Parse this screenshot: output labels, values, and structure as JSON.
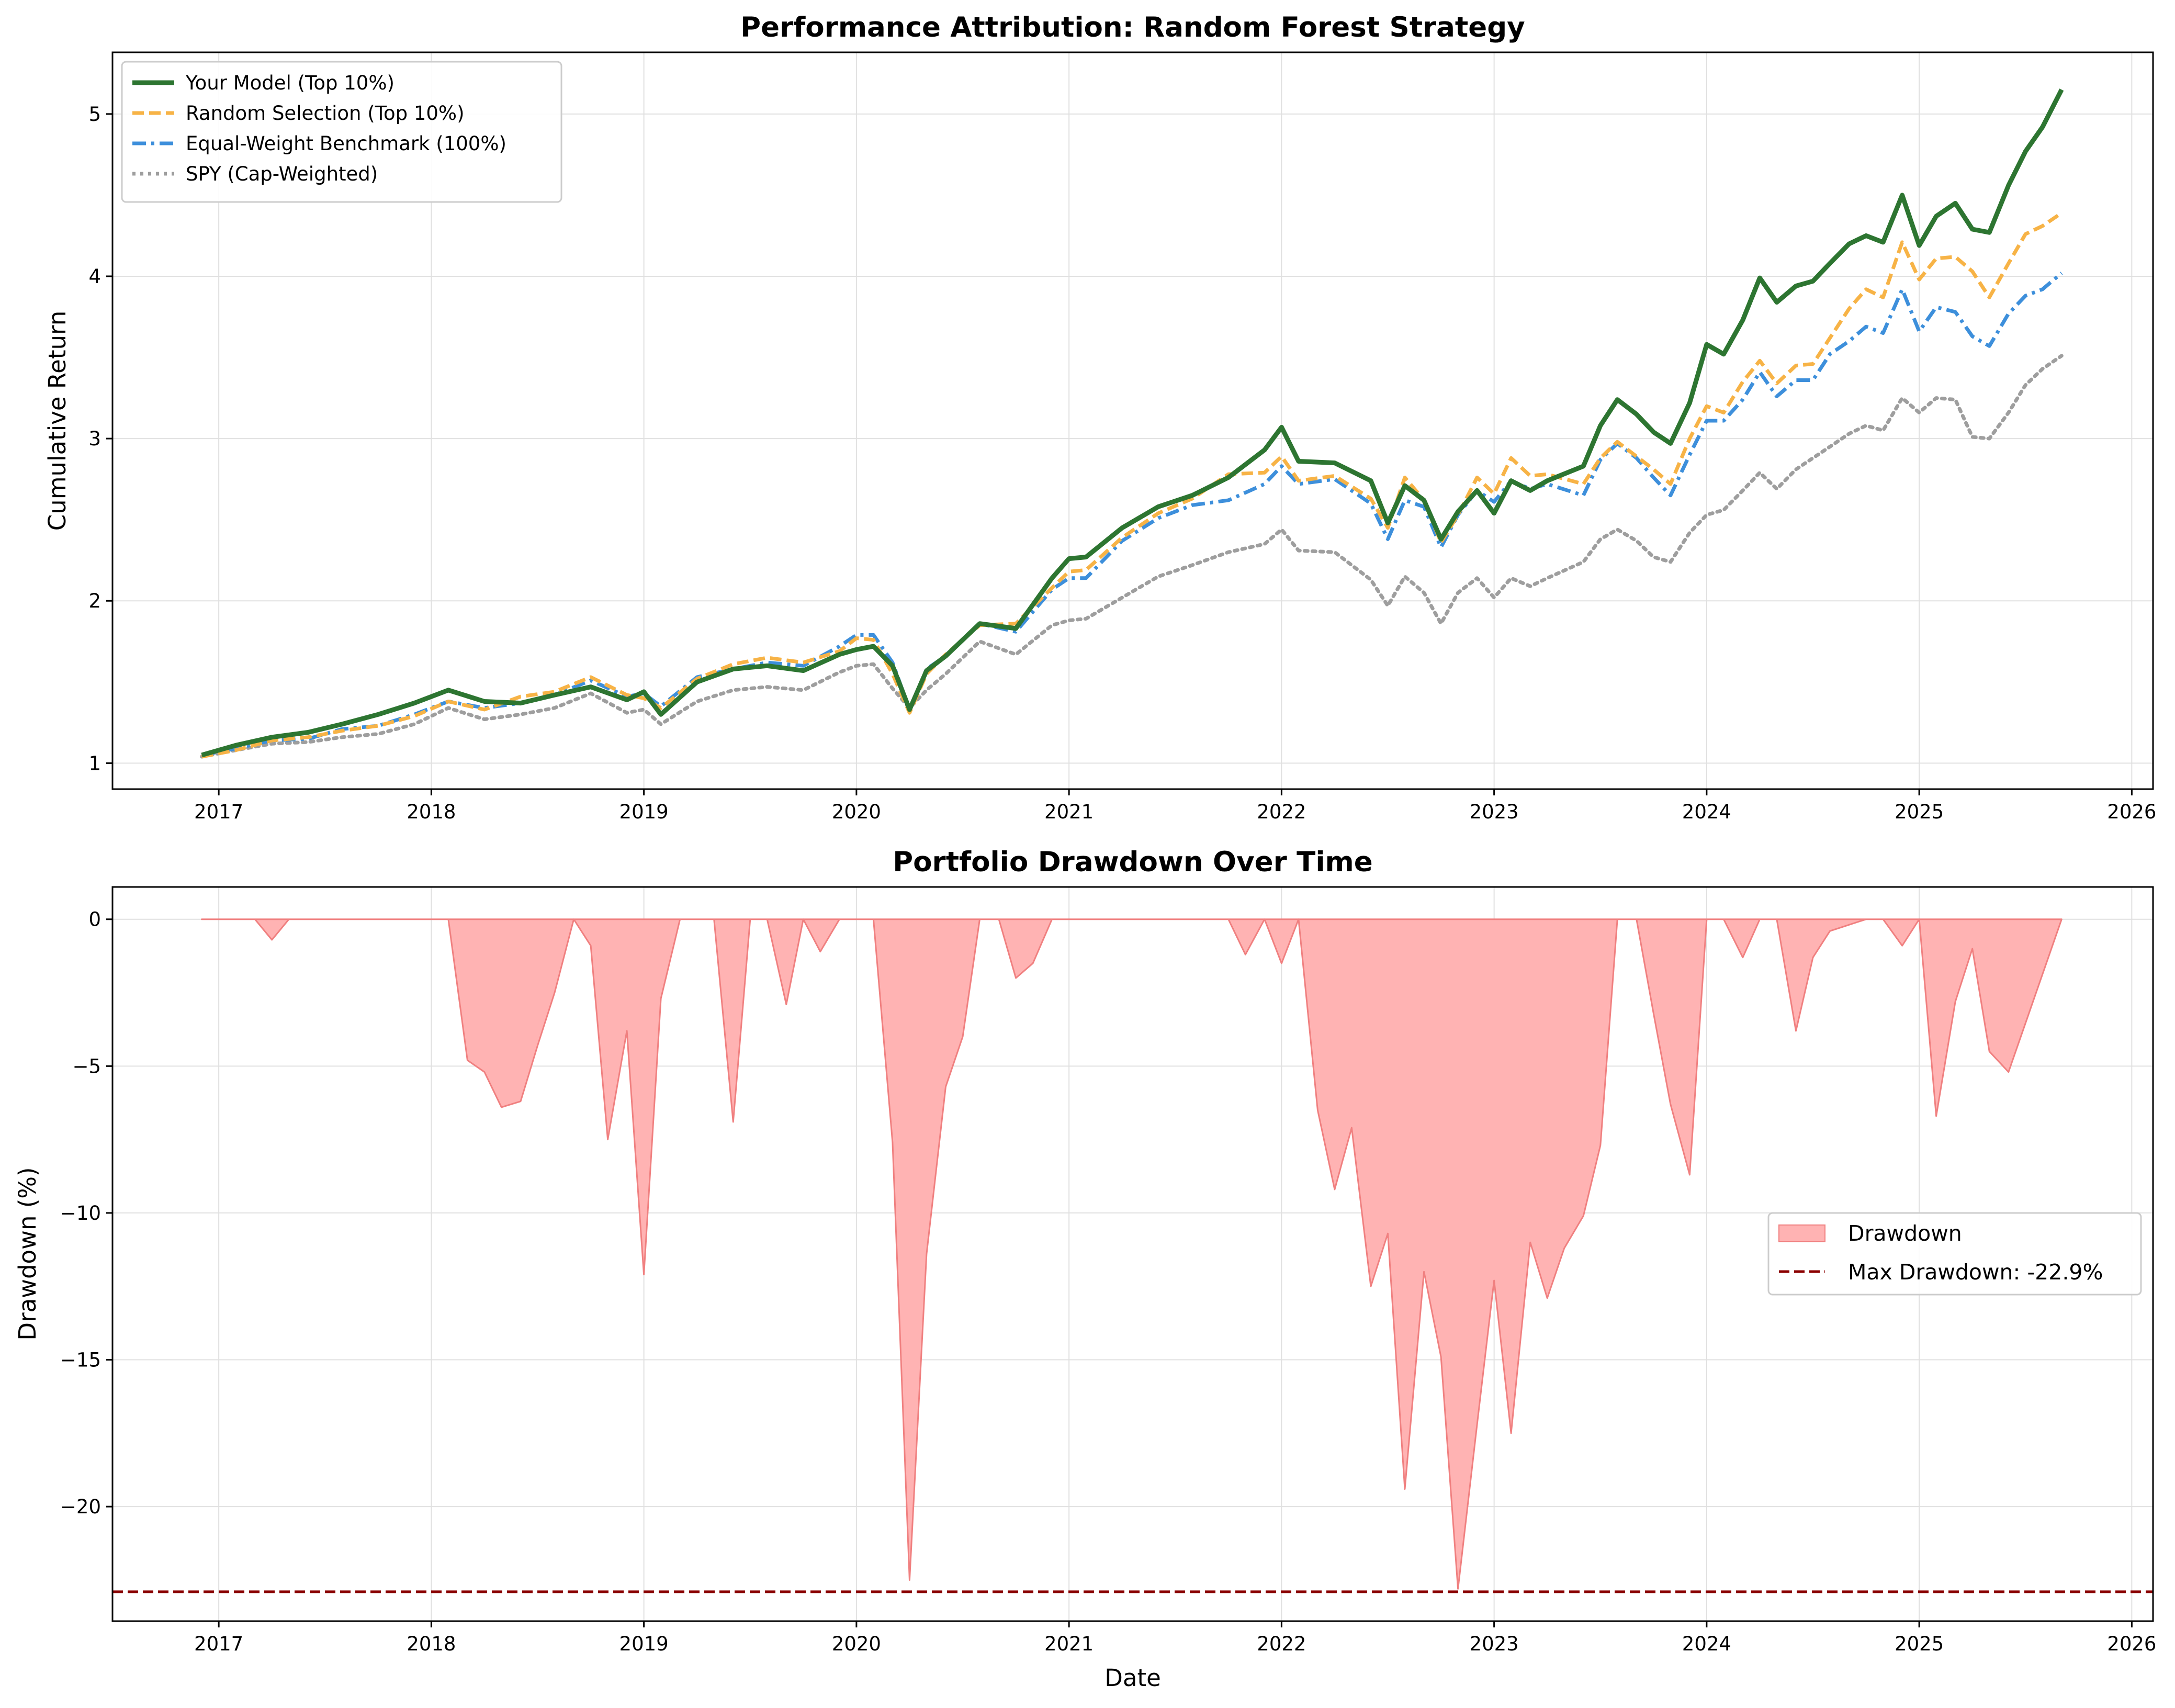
{
  "chart_data": [
    {
      "type": "line",
      "title": "Performance Attribution: Random Forest Strategy",
      "xlabel": "",
      "ylabel": "Cumulative Return",
      "xlim": [
        2016.5,
        2026.1
      ],
      "ylim": [
        0.84,
        5.38
      ],
      "xticks": [
        "2017",
        "2018",
        "2019",
        "2020",
        "2021",
        "2022",
        "2023",
        "2024",
        "2025",
        "2026"
      ],
      "yticks": [
        "1",
        "2",
        "3",
        "4",
        "5"
      ],
      "grid": true,
      "legend_position": "upper-left",
      "x": [
        2016.92,
        2017.08,
        2017.25,
        2017.42,
        2017.58,
        2017.75,
        2017.92,
        2018.08,
        2018.25,
        2018.42,
        2018.58,
        2018.75,
        2018.92,
        2019.0,
        2019.08,
        2019.25,
        2019.42,
        2019.58,
        2019.75,
        2019.92,
        2020.0,
        2020.08,
        2020.17,
        2020.25,
        2020.33,
        2020.42,
        2020.58,
        2020.75,
        2020.92,
        2021.0,
        2021.08,
        2021.25,
        2021.42,
        2021.58,
        2021.75,
        2021.92,
        2022.0,
        2022.08,
        2022.25,
        2022.42,
        2022.5,
        2022.58,
        2022.67,
        2022.75,
        2022.83,
        2022.92,
        2023.0,
        2023.08,
        2023.17,
        2023.25,
        2023.42,
        2023.5,
        2023.58,
        2023.67,
        2023.75,
        2023.83,
        2023.92,
        2024.0,
        2024.08,
        2024.17,
        2024.25,
        2024.33,
        2024.42,
        2024.5,
        2024.58,
        2024.67,
        2024.75,
        2024.83,
        2024.92,
        2025.0,
        2025.08,
        2025.17,
        2025.25,
        2025.33,
        2025.42,
        2025.5,
        2025.58,
        2025.67
      ],
      "series": [
        {
          "name": "Your Model (Top 10%)",
          "color": "#2d7531",
          "style": "solid",
          "values": [
            1.05,
            1.11,
            1.16,
            1.19,
            1.24,
            1.3,
            1.37,
            1.45,
            1.38,
            1.37,
            1.42,
            1.47,
            1.39,
            1.44,
            1.3,
            1.5,
            1.58,
            1.6,
            1.57,
            1.67,
            1.7,
            1.72,
            1.6,
            1.33,
            1.57,
            1.66,
            1.86,
            1.83,
            2.14,
            2.26,
            2.27,
            2.45,
            2.58,
            2.65,
            2.76,
            2.93,
            3.07,
            2.86,
            2.85,
            2.74,
            2.48,
            2.71,
            2.62,
            2.38,
            2.55,
            2.68,
            2.54,
            2.74,
            2.68,
            2.74,
            2.83,
            3.08,
            3.24,
            3.15,
            3.04,
            2.97,
            3.22,
            3.58,
            3.52,
            3.73,
            3.99,
            3.84,
            3.94,
            3.97,
            4.08,
            4.2,
            4.25,
            4.21,
            4.5,
            4.19,
            4.37,
            4.45,
            4.29,
            4.27,
            4.56,
            4.77,
            4.92,
            5.15
          ]
        },
        {
          "name": "Random Selection (Top 10%)",
          "color": "#f7b346",
          "style": "dashed",
          "values": [
            1.04,
            1.08,
            1.14,
            1.16,
            1.2,
            1.23,
            1.29,
            1.38,
            1.33,
            1.41,
            1.44,
            1.53,
            1.42,
            1.4,
            1.34,
            1.52,
            1.61,
            1.65,
            1.62,
            1.69,
            1.77,
            1.76,
            1.55,
            1.31,
            1.55,
            1.67,
            1.85,
            1.86,
            2.08,
            2.18,
            2.19,
            2.39,
            2.54,
            2.63,
            2.78,
            2.79,
            2.89,
            2.74,
            2.77,
            2.63,
            2.45,
            2.76,
            2.62,
            2.36,
            2.53,
            2.76,
            2.66,
            2.88,
            2.77,
            2.78,
            2.72,
            2.88,
            2.98,
            2.89,
            2.81,
            2.72,
            3.0,
            3.2,
            3.16,
            3.35,
            3.48,
            3.34,
            3.45,
            3.46,
            3.62,
            3.8,
            3.92,
            3.87,
            4.21,
            3.98,
            4.11,
            4.12,
            4.03,
            3.87,
            4.08,
            4.26,
            4.31,
            4.39
          ]
        },
        {
          "name": "Equal-Weight Benchmark (100%)",
          "color": "#3d8fdb",
          "style": "dashdot",
          "values": [
            1.05,
            1.09,
            1.14,
            1.15,
            1.21,
            1.23,
            1.3,
            1.38,
            1.34,
            1.37,
            1.42,
            1.51,
            1.41,
            1.43,
            1.35,
            1.53,
            1.58,
            1.62,
            1.6,
            1.72,
            1.79,
            1.79,
            1.62,
            1.33,
            1.58,
            1.66,
            1.86,
            1.81,
            2.07,
            2.14,
            2.14,
            2.37,
            2.51,
            2.59,
            2.62,
            2.72,
            2.83,
            2.72,
            2.75,
            2.6,
            2.38,
            2.62,
            2.58,
            2.33,
            2.53,
            2.68,
            2.61,
            2.74,
            2.69,
            2.72,
            2.65,
            2.87,
            2.97,
            2.88,
            2.76,
            2.65,
            2.9,
            3.11,
            3.11,
            3.24,
            3.41,
            3.26,
            3.36,
            3.36,
            3.52,
            3.6,
            3.69,
            3.65,
            3.92,
            3.66,
            3.81,
            3.78,
            3.63,
            3.57,
            3.77,
            3.88,
            3.92,
            4.02
          ]
        },
        {
          "name": "SPY (Cap-Weighted)",
          "color": "#9e9e9e",
          "style": "dotted",
          "values": [
            1.04,
            1.08,
            1.12,
            1.13,
            1.16,
            1.18,
            1.24,
            1.34,
            1.27,
            1.3,
            1.34,
            1.43,
            1.31,
            1.33,
            1.24,
            1.38,
            1.45,
            1.47,
            1.45,
            1.56,
            1.6,
            1.61,
            1.46,
            1.34,
            1.45,
            1.55,
            1.75,
            1.67,
            1.85,
            1.88,
            1.89,
            2.02,
            2.15,
            2.22,
            2.3,
            2.35,
            2.44,
            2.31,
            2.3,
            2.13,
            1.97,
            2.15,
            2.05,
            1.86,
            2.05,
            2.14,
            2.02,
            2.14,
            2.09,
            2.14,
            2.24,
            2.38,
            2.44,
            2.37,
            2.27,
            2.24,
            2.42,
            2.53,
            2.56,
            2.68,
            2.79,
            2.69,
            2.81,
            2.88,
            2.95,
            3.03,
            3.08,
            3.05,
            3.25,
            3.16,
            3.25,
            3.24,
            3.01,
            3.0,
            3.16,
            3.33,
            3.43,
            3.51
          ]
        }
      ]
    },
    {
      "type": "area",
      "title": "Portfolio Drawdown Over Time",
      "xlabel": "Date",
      "ylabel": "Drawdown (%)",
      "xlim": [
        2016.5,
        2026.1
      ],
      "ylim": [
        -23.9,
        1.1
      ],
      "xticks": [
        "2017",
        "2018",
        "2019",
        "2020",
        "2021",
        "2022",
        "2023",
        "2024",
        "2025",
        "2026"
      ],
      "yticks": [
        "0",
        "−5",
        "−10",
        "−15",
        "−20"
      ],
      "grid": true,
      "legend_position": "center-right",
      "series": [
        {
          "name": "Drawdown",
          "color": "#ffb3b3",
          "edge_color": "#f08080",
          "style": "fill",
          "x": [
            2016.92,
            2017.17,
            2017.25,
            2017.33,
            2018.08,
            2018.17,
            2018.25,
            2018.33,
            2018.42,
            2018.5,
            2018.58,
            2018.67,
            2018.75,
            2018.83,
            2018.92,
            2019.0,
            2019.08,
            2019.17,
            2019.33,
            2019.42,
            2019.5,
            2019.58,
            2019.67,
            2019.75,
            2019.83,
            2019.92,
            2020.08,
            2020.17,
            2020.25,
            2020.33,
            2020.42,
            2020.5,
            2020.58,
            2020.67,
            2020.75,
            2020.83,
            2020.92,
            2021.67,
            2021.75,
            2021.83,
            2021.92,
            2022.0,
            2022.08,
            2022.17,
            2022.25,
            2022.33,
            2022.42,
            2022.5,
            2022.58,
            2022.67,
            2022.75,
            2022.83,
            2022.92,
            2023.0,
            2023.08,
            2023.17,
            2023.25,
            2023.33,
            2023.42,
            2023.5,
            2023.58,
            2023.67,
            2023.75,
            2023.83,
            2023.92,
            2024.0,
            2024.08,
            2024.17,
            2024.25,
            2024.33,
            2024.42,
            2024.5,
            2024.58,
            2024.75,
            2024.83,
            2024.92,
            2025.0,
            2025.08,
            2025.17,
            2025.25,
            2025.33,
            2025.42,
            2025.67
          ],
          "values": [
            0,
            0,
            -0.7,
            0,
            0,
            -4.8,
            -5.2,
            -6.4,
            -6.2,
            -4.3,
            -2.5,
            0,
            -0.9,
            -7.5,
            -3.8,
            -12.1,
            -2.7,
            0,
            0,
            -6.9,
            0,
            0,
            -2.9,
            0,
            -1.1,
            0,
            0,
            -7.6,
            -22.5,
            -11.4,
            -5.7,
            -4.0,
            0,
            0,
            -2.0,
            -1.5,
            0,
            0,
            0,
            -1.2,
            0,
            -1.5,
            0,
            -6.5,
            -9.2,
            -7.1,
            -12.5,
            -10.7,
            -19.4,
            -12.0,
            -14.9,
            -22.8,
            -17.2,
            -12.3,
            -17.5,
            -11.0,
            -12.9,
            -11.2,
            -10.1,
            -7.7,
            0,
            0,
            -3.2,
            -6.3,
            -8.7,
            0,
            0,
            -1.3,
            0,
            0,
            -3.8,
            -1.3,
            -0.4,
            0,
            0,
            -0.9,
            0,
            -6.7,
            -2.8,
            -1.0,
            -4.5,
            -5.2,
            0
          ]
        },
        {
          "name": "Max Drawdown: -22.9%",
          "color": "#8b0000",
          "style": "dashed",
          "value": -22.9
        }
      ]
    }
  ]
}
